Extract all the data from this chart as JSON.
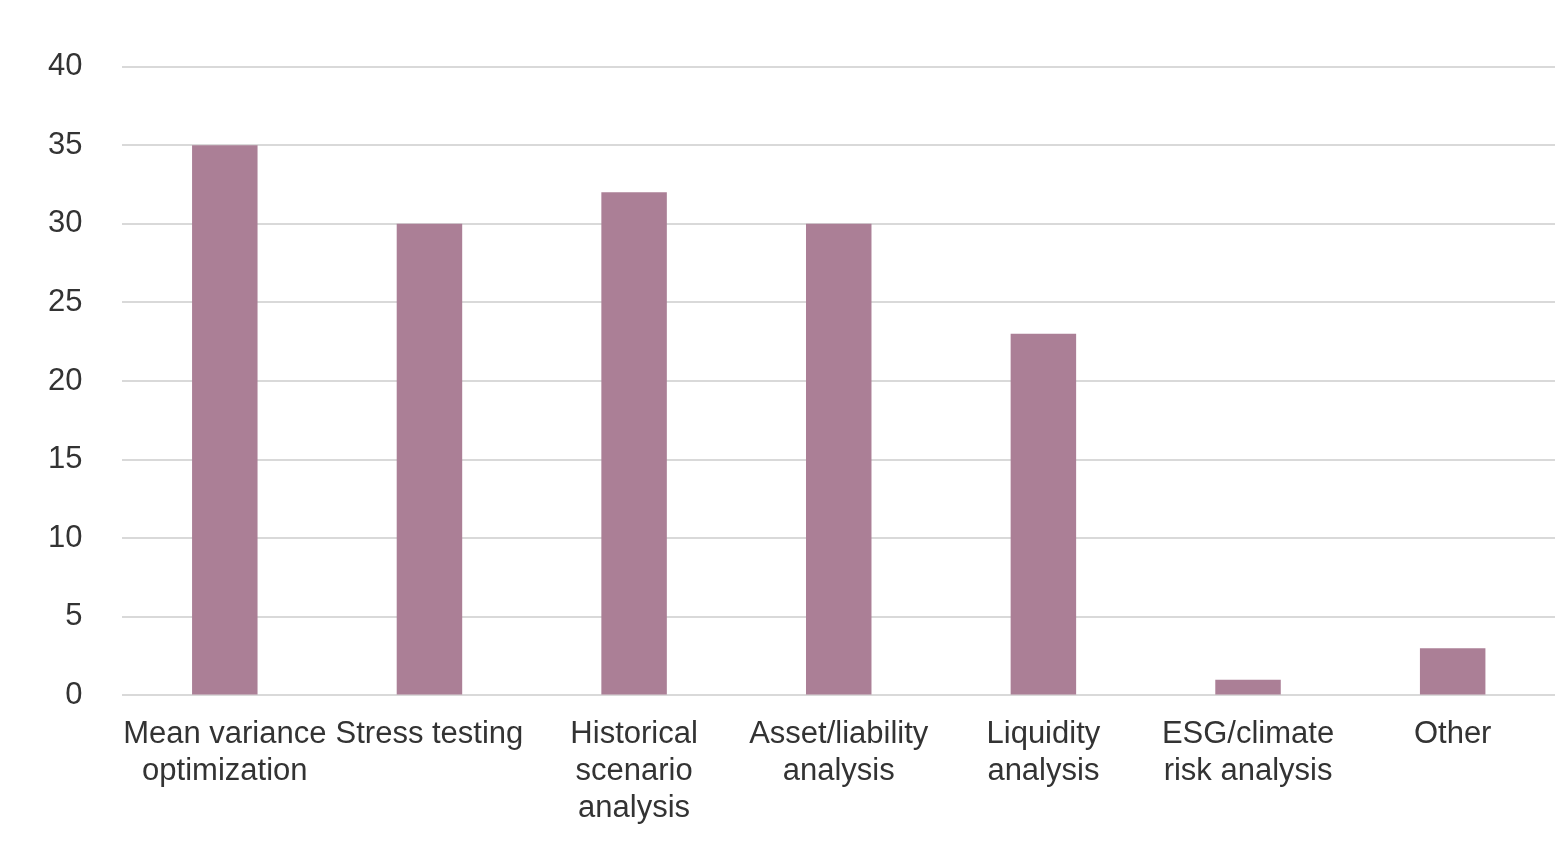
{
  "chart_data": {
    "type": "bar",
    "categories": [
      "Mean variance optimization",
      "Stress testing",
      "Historical scenario analysis",
      "Asset/liability analysis",
      "Liquidity analysis",
      "ESG/climate risk analysis",
      "Other"
    ],
    "values": [
      35,
      30,
      32,
      30,
      23,
      1,
      3
    ],
    "color": "#ab7f96",
    "ylim": [
      0,
      40
    ],
    "yticks": [
      0,
      5,
      10,
      15,
      20,
      25,
      30,
      35,
      40
    ],
    "grid": "y",
    "legend": false
  }
}
